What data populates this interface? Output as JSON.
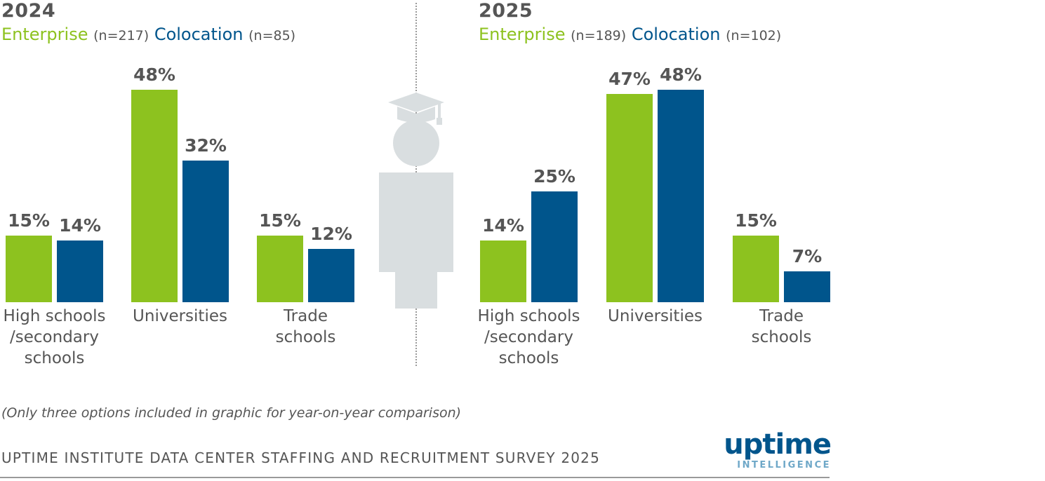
{
  "colors": {
    "enterprise": "#8dc21f",
    "colocation": "#00558c",
    "text": "#555555",
    "icon": "#d9dee0"
  },
  "chart_data": [
    {
      "type": "bar",
      "title": "2024",
      "legend": [
        {
          "name": "Enterprise",
          "n": "(n=217)"
        },
        {
          "name": "Colocation",
          "n": "(n=85)"
        }
      ],
      "categories": [
        "High schools\n/secondary\nschools",
        "Universities",
        "Trade\nschools"
      ],
      "series": [
        {
          "name": "Enterprise",
          "values": [
            15,
            48,
            15
          ],
          "labels": [
            "15%",
            "48%",
            "15%"
          ]
        },
        {
          "name": "Colocation",
          "values": [
            14,
            32,
            12
          ],
          "labels": [
            "14%",
            "32%",
            "12%"
          ]
        }
      ],
      "ylim": [
        0,
        48
      ]
    },
    {
      "type": "bar",
      "title": "2025",
      "legend": [
        {
          "name": "Enterprise",
          "n": "(n=189)"
        },
        {
          "name": "Colocation",
          "n": "(n=102)"
        }
      ],
      "categories": [
        "High schools\n/secondary\nschools",
        "Universities",
        "Trade\nschools"
      ],
      "series": [
        {
          "name": "Enterprise",
          "values": [
            14,
            47,
            15
          ],
          "labels": [
            "14%",
            "47%",
            "15%"
          ]
        },
        {
          "name": "Colocation",
          "values": [
            25,
            48,
            7
          ],
          "labels": [
            "25%",
            "48%",
            "7%"
          ]
        }
      ],
      "ylim": [
        0,
        48
      ]
    }
  ],
  "footnote": "(Only three options included in graphic for year-on-year comparison)",
  "source": "UPTIME INSTITUTE DATA CENTER STAFFING AND RECRUITMENT SURVEY 2025",
  "logo": {
    "main": "uptime",
    "sub": "INTELLIGENCE"
  },
  "icons": {
    "graduate": "graduate-icon"
  }
}
